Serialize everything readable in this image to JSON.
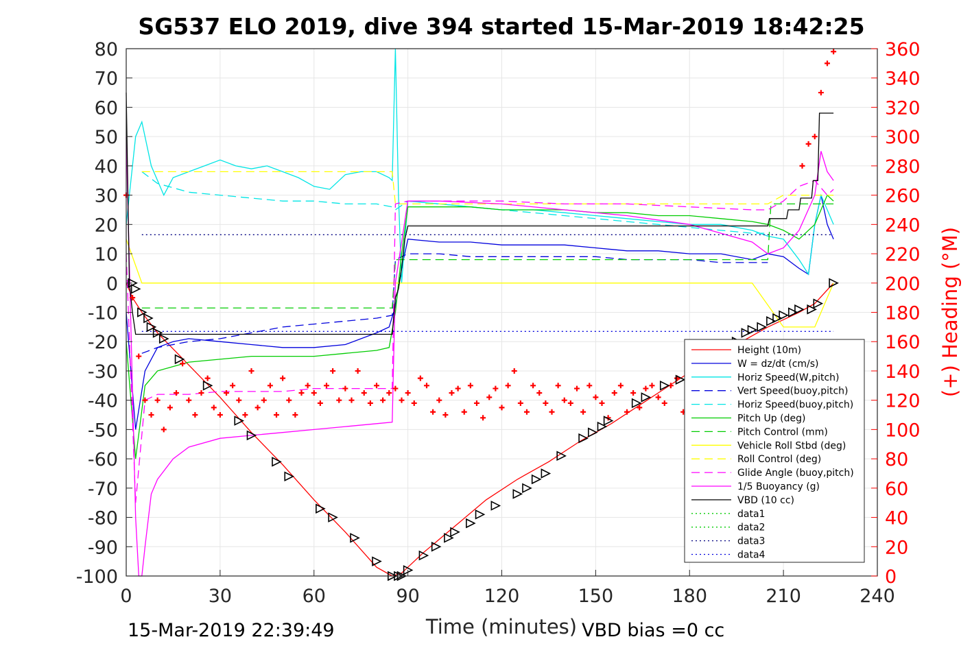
{
  "chart_data": {
    "type": "line",
    "title": "SG537 ELO 2019, dive 394 started 15-Mar-2019 18:42:25",
    "xlabel": "Time (minutes)",
    "ylabel": "",
    "ylabel_right": "(+) Heading (°M)",
    "xlim": [
      0,
      240
    ],
    "ylim": [
      -100,
      80
    ],
    "ylim_right": [
      0,
      360
    ],
    "xticks": [
      0,
      30,
      60,
      90,
      120,
      150,
      180,
      210,
      240
    ],
    "yticks": [
      80,
      70,
      60,
      50,
      40,
      30,
      20,
      10,
      0,
      -10,
      -20,
      -30,
      -40,
      -50,
      -60,
      -70,
      -80,
      -90,
      -100
    ],
    "yticks_right": [
      360,
      340,
      320,
      300,
      280,
      260,
      240,
      220,
      200,
      180,
      160,
      140,
      120,
      100,
      80,
      60,
      40,
      20,
      0
    ],
    "grid": true,
    "legend_position": "lower-right",
    "footer_left": "15-Mar-2019 22:39:49",
    "footer_right": "VBD bias =0 cc",
    "series": [
      {
        "name": "Height (10m)",
        "color": "#ff0000",
        "style": "solid",
        "x": [
          0,
          2,
          5,
          10,
          20,
          30,
          40,
          50,
          60,
          70,
          80,
          85,
          88,
          95,
          105,
          115,
          125,
          135,
          145,
          155,
          165,
          175,
          185,
          195,
          205,
          215,
          220,
          226
        ],
        "y": [
          0,
          -5,
          -10,
          -17,
          -28,
          -39,
          -51,
          -62,
          -74,
          -85,
          -97,
          -100,
          -99,
          -92,
          -83,
          -74,
          -67,
          -61,
          -54,
          -48,
          -41,
          -34,
          -27,
          -21,
          -15,
          -10,
          -7,
          0
        ]
      },
      {
        "name": "W = dz/dt (cm/s)",
        "color": "#0000dd",
        "style": "solid",
        "x": [
          0,
          3,
          6,
          10,
          15,
          20,
          30,
          40,
          50,
          60,
          70,
          80,
          84,
          86,
          88,
          90,
          100,
          110,
          120,
          130,
          140,
          150,
          160,
          170,
          180,
          190,
          200,
          205,
          210,
          215,
          218,
          220,
          222,
          224,
          226
        ],
        "y": [
          -10,
          -50,
          -30,
          -22,
          -20,
          -19,
          -20,
          -21,
          -22,
          -22,
          -21,
          -17,
          -15,
          -8,
          5,
          15,
          14,
          14,
          13,
          13,
          13,
          12,
          11,
          11,
          10,
          10,
          8,
          10,
          9,
          5,
          3,
          20,
          30,
          20,
          15
        ]
      },
      {
        "name": "Horiz Speed(W,pitch)",
        "color": "#00e5e5",
        "style": "solid",
        "x": [
          0,
          3,
          5,
          8,
          12,
          15,
          20,
          25,
          30,
          35,
          40,
          45,
          50,
          55,
          60,
          65,
          70,
          75,
          80,
          84,
          85,
          86,
          87,
          88,
          90,
          100,
          110,
          120,
          130,
          140,
          150,
          160,
          170,
          180,
          190,
          200,
          205,
          210,
          215,
          218,
          220,
          222,
          224,
          226
        ],
        "y": [
          20,
          50,
          55,
          40,
          30,
          36,
          38,
          40,
          42,
          40,
          39,
          40,
          38,
          36,
          33,
          32,
          37,
          38,
          38,
          36,
          35,
          80,
          30,
          0,
          28,
          27,
          26,
          25,
          25,
          24,
          23,
          22,
          21,
          20,
          20,
          18,
          16,
          15,
          8,
          3,
          20,
          30,
          25,
          20
        ]
      },
      {
        "name": "Vert Speed(buoy,pitch)",
        "color": "#0000dd",
        "style": "dashed",
        "x": [
          5,
          10,
          20,
          30,
          40,
          50,
          60,
          70,
          80,
          85,
          86,
          90,
          100,
          110,
          120,
          130,
          140,
          150,
          160,
          170,
          180,
          190,
          200,
          205
        ],
        "y": [
          -24,
          -22,
          -20,
          -19,
          -17,
          -15,
          -14,
          -13,
          -12,
          -11,
          8,
          10,
          10,
          9,
          9,
          9,
          9,
          9,
          8,
          8,
          8,
          7,
          7,
          7
        ]
      },
      {
        "name": "Horiz Speed(buoy,pitch)",
        "color": "#00e5e5",
        "style": "dashed",
        "x": [
          5,
          10,
          20,
          30,
          40,
          50,
          60,
          70,
          80,
          85,
          86,
          90,
          100,
          110,
          120,
          130,
          140,
          150,
          160,
          170,
          180,
          190,
          200,
          205
        ],
        "y": [
          38,
          34,
          31,
          30,
          29,
          28,
          28,
          27,
          27,
          26,
          25,
          28,
          27,
          26,
          25,
          24,
          23,
          22,
          21,
          20,
          19,
          18,
          17,
          17
        ]
      },
      {
        "name": "Pitch Up (deg)",
        "color": "#00cc00",
        "style": "solid",
        "x": [
          0,
          3,
          6,
          10,
          20,
          30,
          40,
          50,
          60,
          70,
          80,
          84,
          86,
          88,
          90,
          100,
          110,
          120,
          130,
          140,
          150,
          160,
          170,
          180,
          190,
          200,
          205,
          210,
          215,
          220,
          224,
          226
        ],
        "y": [
          -20,
          -60,
          -35,
          -30,
          -27,
          -26,
          -25,
          -25,
          -25,
          -24,
          -23,
          -22,
          -10,
          10,
          26,
          26,
          26,
          25,
          25,
          25,
          24,
          24,
          23,
          23,
          22,
          21,
          20,
          18,
          15,
          20,
          30,
          28
        ]
      },
      {
        "name": "Pitch Control (mm)",
        "color": "#00cc00",
        "style": "dashed",
        "x": [
          5,
          85,
          86,
          205,
          206,
          226
        ],
        "y": [
          -8.5,
          -8.5,
          8,
          8,
          27,
          27
        ]
      },
      {
        "name": "Vehicle Roll Stbd (deg)",
        "color": "#ffff00",
        "style": "solid",
        "x": [
          0,
          5,
          10,
          85,
          86,
          90,
          200,
          210,
          220,
          226
        ],
        "y": [
          15,
          0,
          0,
          0,
          0,
          0,
          0,
          -15,
          -15,
          0
        ]
      },
      {
        "name": "Roll Control (deg)",
        "color": "#ffff00",
        "style": "dashed",
        "x": [
          5,
          85,
          86,
          205,
          210,
          226
        ],
        "y": [
          38,
          38,
          27,
          27,
          30,
          30
        ]
      },
      {
        "name": "Glide Angle (buoy,pitch)",
        "color": "#ff00ff",
        "style": "dashed",
        "x": [
          0,
          3,
          6,
          10,
          20,
          30,
          40,
          50,
          60,
          70,
          80,
          85,
          86,
          90,
          100,
          120,
          140,
          160,
          180,
          200,
          205,
          210,
          215,
          220,
          224,
          226
        ],
        "y": [
          10,
          -75,
          -40,
          -38,
          -38,
          -37,
          -37,
          -37,
          -36,
          -36,
          -36,
          -36,
          27,
          28,
          28,
          28,
          27,
          27,
          26,
          25,
          25,
          28,
          33,
          35,
          30,
          32
        ]
      },
      {
        "name": "1/5 Buoyancy (g)",
        "color": "#ff00ff",
        "style": "solid",
        "x": [
          0,
          3,
          4,
          5,
          6,
          8,
          10,
          15,
          20,
          30,
          40,
          50,
          60,
          70,
          80,
          85,
          86,
          90,
          100,
          120,
          140,
          160,
          180,
          190,
          200,
          205,
          210,
          215,
          220,
          222,
          224,
          226
        ],
        "y": [
          50,
          -80,
          -100,
          -100,
          -90,
          -72,
          -67,
          -60,
          -56,
          -53,
          -52,
          -51,
          -50,
          -49,
          -48,
          -47.5,
          0,
          28,
          28,
          27,
          25,
          23,
          20,
          17,
          14,
          10,
          12,
          18,
          30,
          45,
          38,
          35
        ]
      },
      {
        "name": "VBD (10 cc)",
        "color": "#000000",
        "style": "solid",
        "x": [
          0,
          1,
          2,
          3,
          4,
          85,
          86,
          87,
          88,
          89,
          90,
          205,
          205.5,
          211,
          211.5,
          215,
          215.5,
          219,
          219.5,
          221,
          221.5,
          226
        ],
        "y": [
          65,
          0,
          -10,
          -17.5,
          -17.5,
          -17.5,
          -5,
          -2,
          5,
          15,
          19.5,
          19.5,
          22,
          22,
          25,
          25,
          29,
          29,
          35,
          35,
          58,
          58
        ]
      },
      {
        "name": "data1",
        "color": "#00cc00",
        "style": "dotted",
        "x": [],
        "y": []
      },
      {
        "name": "data2",
        "color": "#00cc00",
        "style": "dotted",
        "x": [],
        "y": []
      },
      {
        "name": "data3",
        "color": "#000080",
        "style": "dotted",
        "x": [
          5,
          226
        ],
        "y": [
          16.5,
          16.5
        ]
      },
      {
        "name": "data4",
        "color": "#0000dd",
        "style": "dotted",
        "x": [
          5,
          226
        ],
        "y": [
          -16.5,
          -16.5
        ]
      }
    ],
    "heading_series": {
      "name": "(+) Heading (°M)",
      "color": "#ff0000",
      "marker": "+",
      "axis": "right",
      "x": [
        0,
        2,
        4,
        6,
        8,
        10,
        12,
        14,
        16,
        18,
        20,
        22,
        24,
        26,
        28,
        30,
        32,
        34,
        36,
        38,
        40,
        42,
        44,
        46,
        48,
        50,
        52,
        54,
        56,
        58,
        60,
        62,
        64,
        66,
        68,
        70,
        72,
        74,
        76,
        78,
        80,
        82,
        84,
        86,
        88,
        90,
        92,
        94,
        96,
        98,
        100,
        102,
        104,
        106,
        108,
        110,
        112,
        114,
        116,
        118,
        120,
        122,
        124,
        126,
        128,
        130,
        132,
        134,
        136,
        138,
        140,
        142,
        144,
        146,
        148,
        150,
        152,
        154,
        156,
        158,
        160,
        162,
        164,
        166,
        168,
        170,
        172,
        174,
        176,
        178,
        180,
        182,
        184,
        186,
        188,
        190,
        192,
        194,
        196,
        198,
        200,
        202,
        204,
        206,
        208,
        210,
        212,
        214,
        216,
        218,
        220,
        222,
        224,
        226
      ],
      "y": [
        260,
        190,
        150,
        120,
        110,
        120,
        100,
        115,
        125,
        145,
        120,
        110,
        125,
        135,
        115,
        110,
        125,
        130,
        120,
        110,
        140,
        115,
        120,
        130,
        110,
        135,
        120,
        110,
        125,
        130,
        125,
        118,
        130,
        140,
        120,
        128,
        120,
        140,
        125,
        118,
        130,
        120,
        125,
        128,
        120,
        125,
        118,
        135,
        130,
        112,
        120,
        110,
        125,
        128,
        112,
        130,
        118,
        108,
        122,
        128,
        115,
        130,
        140,
        118,
        112,
        130,
        125,
        118,
        112,
        130,
        120,
        118,
        128,
        112,
        130,
        122,
        118,
        108,
        125,
        130,
        112,
        125,
        115,
        128,
        130,
        122,
        118,
        130,
        135,
        112,
        100,
        125,
        130,
        118,
        122,
        128,
        135,
        130,
        118,
        122,
        125,
        130,
        138,
        132,
        122,
        128,
        110,
        150,
        280,
        295,
        300,
        330,
        350,
        358
      ]
    },
    "markers_triangles": {
      "x": [
        2,
        3,
        5,
        7,
        8,
        10,
        12,
        17,
        26,
        36,
        40,
        48,
        52,
        62,
        66,
        73,
        80,
        85,
        87,
        88,
        90,
        95,
        99,
        103,
        105,
        110,
        113,
        118,
        125,
        128,
        131,
        134,
        139,
        146,
        149,
        152,
        154,
        163,
        166,
        172,
        177,
        195,
        198,
        200,
        203,
        206,
        208,
        210,
        213,
        215,
        219,
        221,
        226
      ],
      "y": [
        0,
        -2,
        -10,
        -12,
        -15,
        -17,
        -19,
        -26,
        -35,
        -47,
        -52,
        -61,
        -66,
        -77,
        -80,
        -87,
        -95,
        -100,
        -100,
        -100,
        -98,
        -93,
        -90,
        -87,
        -85,
        -82,
        -79,
        -76,
        -72,
        -70,
        -67,
        -65,
        -59,
        -53,
        -51,
        -49,
        -47,
        -41,
        -39,
        -35,
        -33,
        -20,
        -17,
        -16,
        -15,
        -13,
        -12,
        -11,
        -10,
        -9,
        -9,
        -7,
        0
      ]
    }
  }
}
